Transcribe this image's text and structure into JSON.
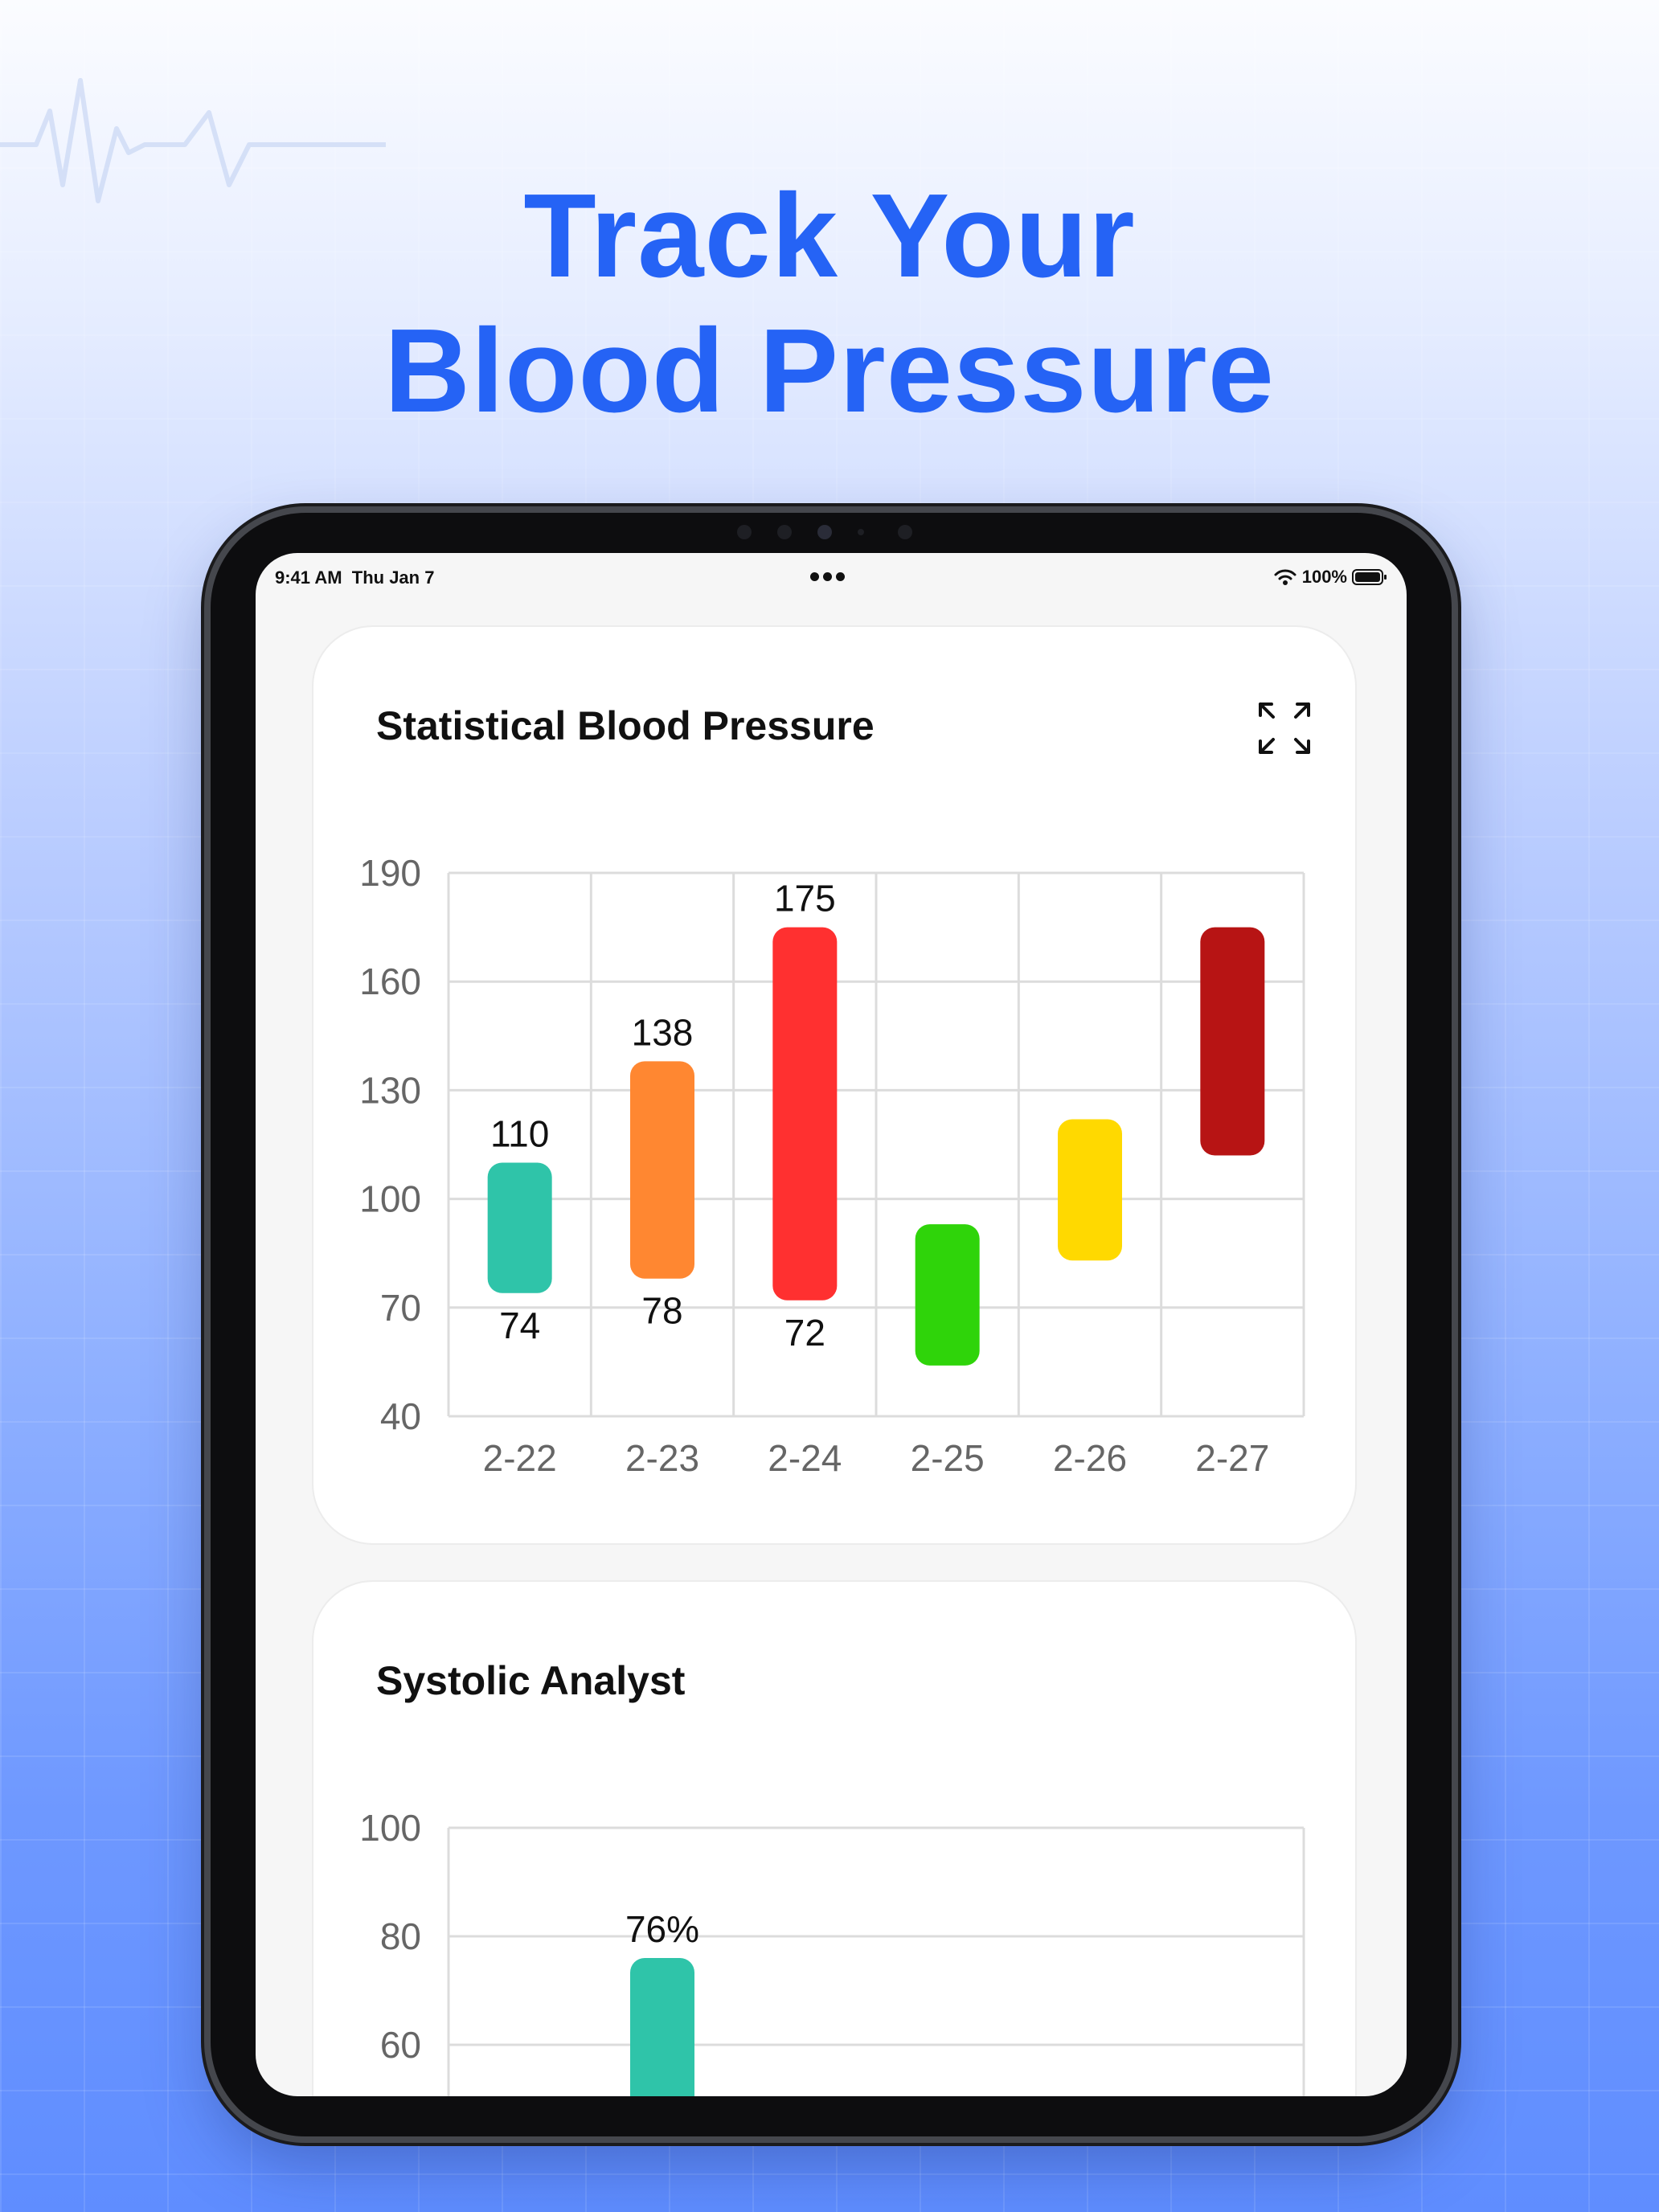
{
  "hero": {
    "title_line1": "Track Your",
    "title_line2": "Blood Pressure",
    "color": "#2563f5"
  },
  "status_bar": {
    "time_date": "9:41 AM  Thu Jan 7",
    "battery": "100%",
    "icons": [
      "more-dots-icon",
      "wifi-icon",
      "battery-icon"
    ]
  },
  "cards": {
    "bp": {
      "title": "Statistical Blood Pressure",
      "expand_icon": "expand-icon"
    },
    "systolic": {
      "title": "Systolic Analyst"
    }
  },
  "chart_data": [
    {
      "type": "bar",
      "subtype": "floating-range",
      "title": "Statistical Blood Pressure",
      "categories": [
        "2-22",
        "2-23",
        "2-24",
        "2-25",
        "2-26",
        "2-27"
      ],
      "series": [
        {
          "low": 74,
          "high": 110,
          "color": "#2fc4a9",
          "low_label": "74",
          "high_label": "110"
        },
        {
          "low": 78,
          "high": 138,
          "color": "#ff8731",
          "low_label": "78",
          "high_label": "138"
        },
        {
          "low": 72,
          "high": 175,
          "color": "#ff3030",
          "low_label": "72",
          "high_label": "175"
        },
        {
          "low": 54,
          "high": 93,
          "color": "#2fd40a",
          "low_label": "",
          "high_label": ""
        },
        {
          "low": 83,
          "high": 122,
          "color": "#ffd900",
          "low_label": "",
          "high_label": ""
        },
        {
          "low": 112,
          "high": 175,
          "color": "#b71414",
          "low_label": "",
          "high_label": ""
        }
      ],
      "y_ticks": [
        "190",
        "160",
        "130",
        "100",
        "70",
        "40"
      ],
      "ylim": [
        40,
        190
      ],
      "grid": true,
      "legend": "none"
    },
    {
      "type": "bar",
      "title": "Systolic Analyst",
      "categories": [
        "",
        "",
        "",
        "",
        "",
        ""
      ],
      "series": [
        {
          "index": 1,
          "value": 76,
          "label": "76%",
          "color": "#2fc4a9"
        }
      ],
      "y_ticks": [
        "100",
        "80",
        "60"
      ],
      "ylim": [
        40,
        100
      ],
      "grid": true,
      "legend": "none"
    }
  ]
}
